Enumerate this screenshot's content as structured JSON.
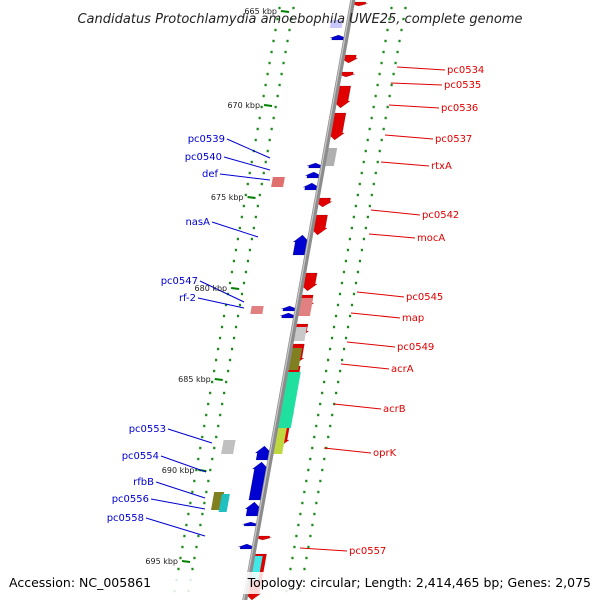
{
  "title": "Candidatus Protochlamydia amoebophila UWE25, complete genome",
  "footer": {
    "accession": "Accession: NC_005861",
    "summary": "Topology: circular; Length: 2,414,465 bp; Genes: 2,075"
  },
  "colors": {
    "forward_strand": "#e00000",
    "reverse_strand": "#0000d0",
    "backbone": "#8c8c8c",
    "kbp_tick": "#008000",
    "dotted_track": "#1a8a1a"
  },
  "kbp_marks": [
    "665 kbp",
    "670 kbp",
    "675 kbp",
    "680 kbp",
    "685 kbp",
    "690 kbp",
    "695 kbp"
  ],
  "gene_labels_right": [
    "pc0534",
    "pc0535",
    "pc0536",
    "pc0537",
    "rtxA",
    "pc0542",
    "mocA",
    "pc0545",
    "map",
    "pc0549",
    "acrA",
    "acrB",
    "oprK",
    "pc0557"
  ],
  "gene_labels_left": [
    "pc0539",
    "pc0540",
    "def",
    "nasA",
    "pc0547",
    "rf-2",
    "pc0553",
    "pc0554",
    "rfbB",
    "pc0556",
    "pc0558"
  ]
}
